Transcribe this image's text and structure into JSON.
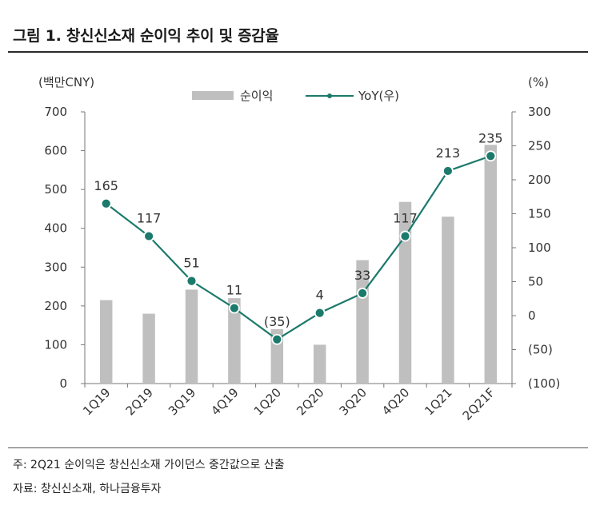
{
  "title": "그림 1. 창신신소재 순이익 추이 및 증감율",
  "footnote": "주: 2Q21 순이익은 창신신소재 가이던스 중간값으로 산출",
  "source": "자료: 창신신소재, 하나금융투자",
  "chart_data": {
    "type": "bar+line",
    "categories": [
      "1Q19",
      "2Q19",
      "3Q19",
      "4Q19",
      "1Q20",
      "2Q20",
      "3Q20",
      "4Q20",
      "1Q21",
      "2Q21F"
    ],
    "left_axis": {
      "label": "(백만CNY)",
      "min": 0,
      "max": 700,
      "step": 100,
      "ticks": [
        "0",
        "100",
        "200",
        "300",
        "400",
        "500",
        "600",
        "700"
      ]
    },
    "right_axis": {
      "label": "(%)",
      "min": -100,
      "max": 300,
      "step": 50,
      "ticks": [
        "(100)",
        "(50)",
        "0",
        "50",
        "100",
        "150",
        "200",
        "250",
        "300"
      ]
    },
    "series": [
      {
        "name": "순이익",
        "type": "bar",
        "axis": "left",
        "color": "#bfbfbf",
        "values": [
          215,
          180,
          242,
          220,
          140,
          100,
          318,
          468,
          430,
          615
        ]
      },
      {
        "name": "YoY(우)",
        "type": "line",
        "axis": "right",
        "color": "#1b7a6b",
        "values": [
          165,
          117,
          51,
          11,
          -35,
          4,
          33,
          117,
          213,
          235
        ],
        "labels": [
          "165",
          "117",
          "51",
          "11",
          "(35)",
          "4",
          "33",
          "117",
          "213",
          "235"
        ]
      }
    ],
    "legend_position": "top-center"
  }
}
